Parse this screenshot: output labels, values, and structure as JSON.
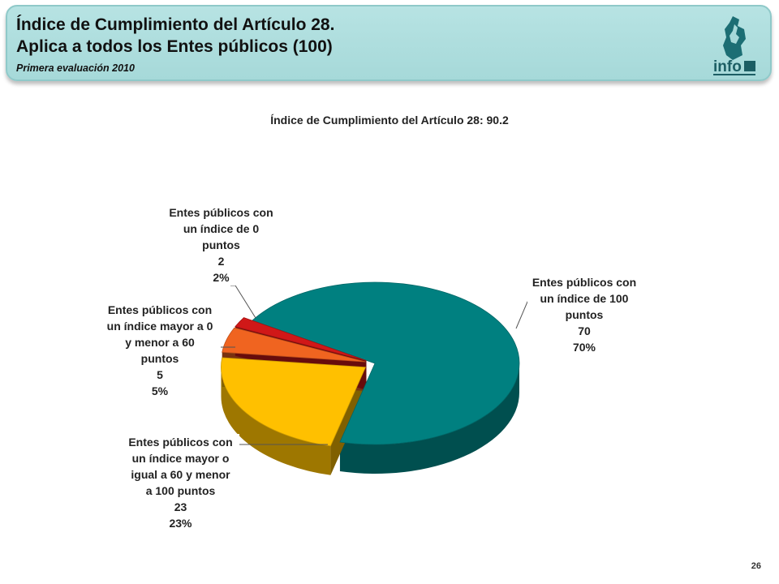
{
  "header": {
    "title_line1": "Índice de Cumplimiento del Artículo 28.",
    "title_line2": "Aplica a todos los Entes públicos (100)",
    "subtitle": "Primera evaluación 2010",
    "logo_text": "info",
    "logo_icon": "df-map-logo-icon"
  },
  "chart_data": {
    "type": "pie",
    "title": "Índice de Cumplimiento del Artículo 28: 90.2",
    "slices": [
      {
        "label": [
          "Entes públicos con",
          "un índice de 100",
          "puntos"
        ],
        "value": 70,
        "percent": "70%",
        "color": "#008080"
      },
      {
        "label": [
          "Entes públicos con",
          "un índice mayor o",
          "igual a 60 y menor",
          "a 100 puntos"
        ],
        "value": 23,
        "percent": "23%",
        "color": "#ffc000"
      },
      {
        "label": [
          "Entes públicos con",
          "un índice mayor a 0",
          "y menor a 60",
          "puntos"
        ],
        "value": 5,
        "percent": "5%",
        "color": "#f06420"
      },
      {
        "label": [
          "Entes públicos con",
          "un índice de 0",
          "puntos"
        ],
        "value": 2,
        "percent": "2%",
        "color": "#d01818"
      }
    ]
  },
  "footer": {
    "page_number": "26"
  }
}
